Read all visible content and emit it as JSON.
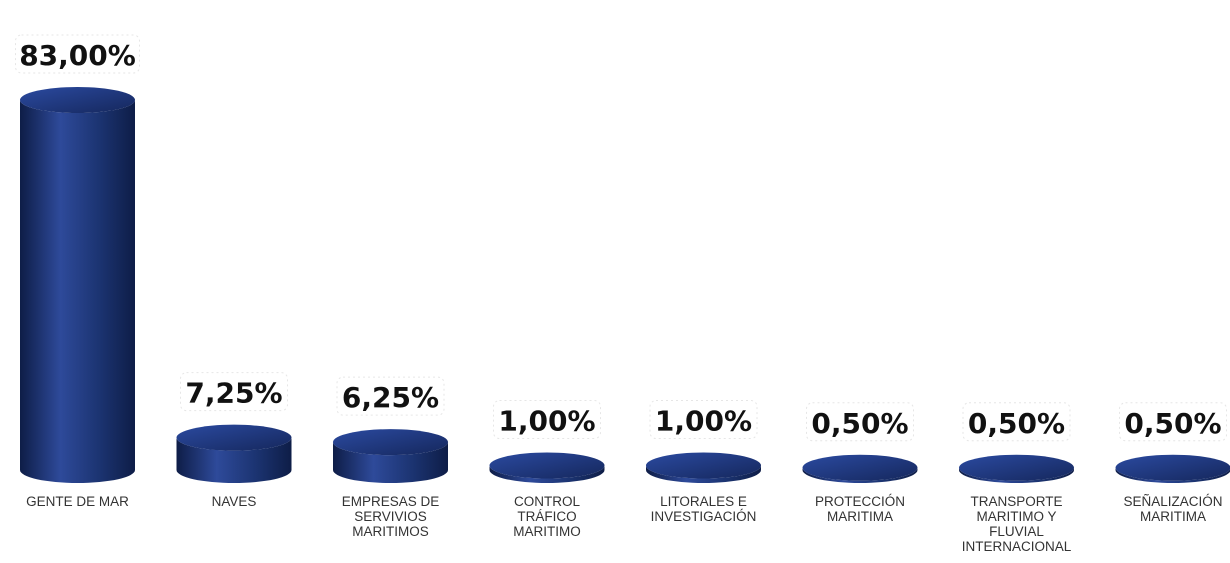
{
  "chart_data": {
    "type": "bar",
    "style": "3d-cylinder",
    "categories": [
      [
        "GENTE DE MAR"
      ],
      [
        "NAVES"
      ],
      [
        "EMPRESAS DE",
        "SERVIVIOS",
        "MARITIMOS"
      ],
      [
        "CONTROL",
        "TRÁFICO",
        "MARITIMO"
      ],
      [
        "LITORALES E",
        "INVESTIGACIÓN"
      ],
      [
        "PROTECCIÓN",
        "MARITIMA"
      ],
      [
        "TRANSPORTE",
        "MARITIMO Y",
        "FLUVIAL",
        "INTERNACIONAL"
      ],
      [
        "SEÑALIZACIÓN",
        "MARITIMA"
      ]
    ],
    "values": [
      83.0,
      7.25,
      6.25,
      1.0,
      1.0,
      0.5,
      0.5,
      0.5
    ],
    "value_labels": [
      "83,00%",
      "7,25%",
      "6,25%",
      "1,00%",
      "1,00%",
      "0,50%",
      "0,50%",
      "0,50%"
    ],
    "ylim": [
      0,
      83
    ],
    "grid": false,
    "legend": "none",
    "colors": {
      "bar_light": "#2e4a9a",
      "bar_mid": "#1b3370",
      "bar_dark": "#0e1d47",
      "bar_top": "#243f8c"
    }
  }
}
